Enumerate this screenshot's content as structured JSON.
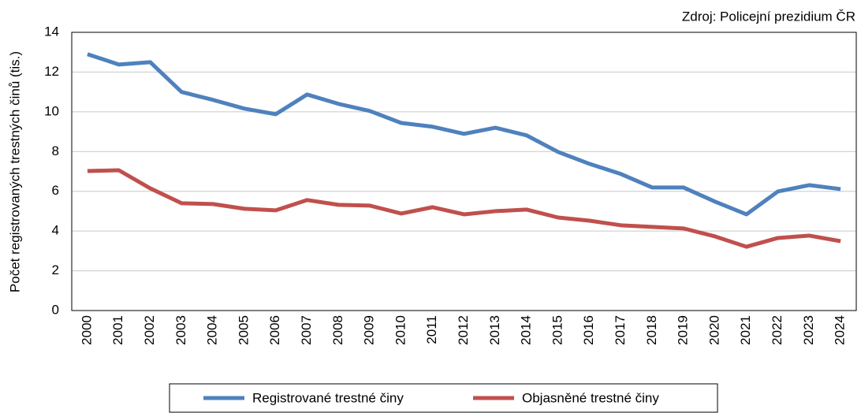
{
  "chart_data": {
    "type": "line",
    "source": "Zdroj: Policejní prezidium ČR",
    "y_label": "Počet registrovaných trestných činů (tis.)",
    "categories": [
      "2000",
      "2001",
      "2002",
      "2003",
      "2004",
      "2005",
      "2006",
      "2007",
      "2008",
      "2009",
      "2010",
      "2011",
      "2012",
      "2013",
      "2014",
      "2015",
      "2016",
      "2017",
      "2018",
      "2019",
      "2020",
      "2021",
      "2022",
      "2023",
      "2024"
    ],
    "series": [
      {
        "name": "Registrované trestné činy",
        "color": "#4f81bd",
        "values": [
          12.9,
          12.38,
          12.5,
          11.0,
          10.6,
          10.16,
          9.88,
          10.87,
          10.4,
          10.04,
          9.44,
          9.25,
          8.89,
          9.2,
          8.81,
          7.98,
          7.38,
          6.87,
          6.19,
          6.19,
          5.48,
          4.84,
          5.99,
          6.31,
          6.11
        ]
      },
      {
        "name": "Objasněné trestné činy",
        "color": "#c0504d",
        "values": [
          7.02,
          7.06,
          6.15,
          5.4,
          5.36,
          5.12,
          5.04,
          5.56,
          5.32,
          5.28,
          4.88,
          5.2,
          4.84,
          5.0,
          5.08,
          4.68,
          4.52,
          4.29,
          4.21,
          4.13,
          3.73,
          3.21,
          3.65,
          3.77,
          3.49
        ]
      }
    ],
    "ylim": [
      0,
      14
    ],
    "yticks": [
      0,
      2,
      4,
      6,
      8,
      10,
      12,
      14
    ],
    "grid": true,
    "legend": "bottom"
  }
}
